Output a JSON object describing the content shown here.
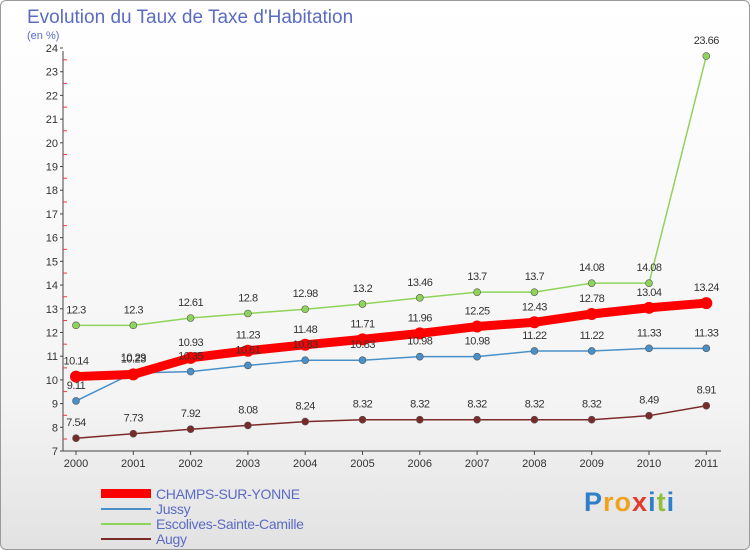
{
  "title": "Evolution du Taux de Taxe d'Habitation",
  "subtitle": "(en %)",
  "logo": {
    "text": "Proxiti",
    "letters": [
      {
        "ch": "P",
        "color": "#2f7fc9"
      },
      {
        "ch": "r",
        "color": "#f0a21e"
      },
      {
        "ch": "o",
        "color": "#f0a21e"
      },
      {
        "ch": "x",
        "color": "#e23a2b"
      },
      {
        "ch": "i",
        "color": "#2f7fc9"
      },
      {
        "ch": "t",
        "color": "#8fc03a"
      },
      {
        "ch": "i",
        "color": "#2f7fc9"
      }
    ]
  },
  "chart_data": {
    "type": "line",
    "title": "Evolution du Taux de Taxe d'Habitation",
    "subtitle": "(en %)",
    "x": [
      "2000",
      "2001",
      "2002",
      "2003",
      "2004",
      "2005",
      "2006",
      "2007",
      "2008",
      "2009",
      "2010",
      "2011"
    ],
    "ylim": [
      7,
      24
    ],
    "yticks": [
      7,
      8,
      9,
      10,
      11,
      12,
      13,
      14,
      15,
      16,
      17,
      18,
      19,
      20,
      21,
      22,
      23,
      24
    ],
    "grid": false,
    "legend_position": "bottom-left",
    "series": [
      {
        "name": "CHAMPS-SUR-YONNE",
        "color": "#ff0000",
        "width": 9,
        "marker": 6,
        "label_offset": -12,
        "values": [
          10.14,
          10.23,
          10.93,
          11.23,
          11.48,
          11.71,
          11.96,
          12.25,
          12.43,
          12.78,
          13.04,
          13.24
        ],
        "labels": [
          "10.14",
          "10.23",
          "10.93",
          "11.23",
          "11.48",
          "11.71",
          "11.96",
          "12.25",
          "12.43",
          "12.78",
          "13.04",
          "13.24"
        ]
      },
      {
        "name": "Jussy",
        "color": "#4a90c8",
        "width": 1.5,
        "marker": 3.5,
        "label_offset": -12,
        "values": [
          9.11,
          10.29,
          10.35,
          10.61,
          10.83,
          10.83,
          10.98,
          10.98,
          11.22,
          11.22,
          11.33,
          11.33
        ],
        "labels": [
          "9.11",
          "10.29",
          "10.35",
          "10.61",
          "10.83",
          "10.83",
          "10.98",
          "10.98",
          "11.22",
          "11.22",
          "11.33",
          "11.33"
        ]
      },
      {
        "name": "Escolives-Sainte-Camille",
        "color": "#8fd45a",
        "width": 1.5,
        "marker": 3.5,
        "label_offset": -12,
        "values": [
          12.3,
          12.3,
          12.61,
          12.8,
          12.98,
          13.2,
          13.46,
          13.7,
          13.7,
          14.08,
          14.08,
          23.66
        ],
        "labels": [
          "12.3",
          "12.3",
          "12.61",
          "12.8",
          "12.98",
          "13.2",
          "13.46",
          "13.7",
          "13.7",
          "14.08",
          "14.08",
          "23.66"
        ]
      },
      {
        "name": "Augy",
        "color": "#7b2a2a",
        "width": 1.5,
        "marker": 3.5,
        "label_offset": -12,
        "values": [
          7.54,
          7.73,
          7.92,
          8.08,
          8.24,
          8.32,
          8.32,
          8.32,
          8.32,
          8.32,
          8.49,
          8.91
        ],
        "labels": [
          "7.54",
          "7.73",
          "7.92",
          "8.08",
          "8.24",
          "8.32",
          "8.32",
          "8.32",
          "8.32",
          "8.32",
          "8.49",
          "8.91"
        ]
      }
    ]
  }
}
